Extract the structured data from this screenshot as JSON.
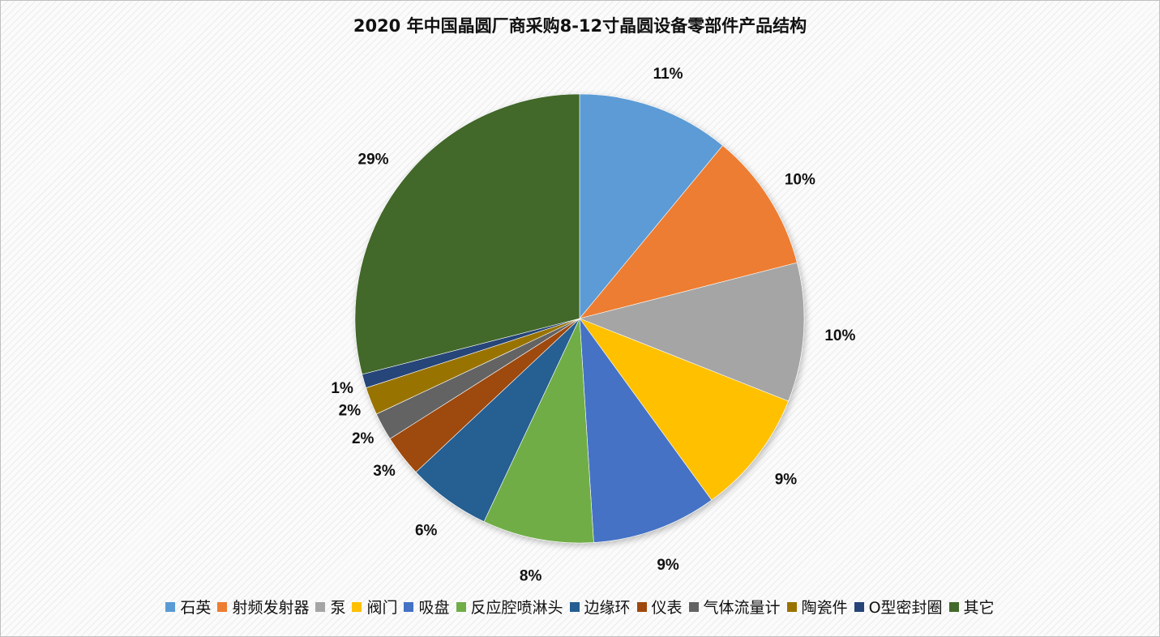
{
  "chart_data": {
    "type": "pie",
    "title": "2020 年中国晶圆厂商采购8-12寸晶圆设备零部件产品结构",
    "legend_position": "bottom",
    "slices": [
      {
        "name": "石英",
        "value": 11,
        "label": "11%",
        "color": "#5b9bd5"
      },
      {
        "name": "射频发射器",
        "value": 10,
        "label": "10%",
        "color": "#ed7d31"
      },
      {
        "name": "泵",
        "value": 10,
        "label": "10%",
        "color": "#a5a5a5"
      },
      {
        "name": "阀门",
        "value": 9,
        "label": "9%",
        "color": "#ffc000"
      },
      {
        "name": "吸盘",
        "value": 9,
        "label": "9%",
        "color": "#4472c4"
      },
      {
        "name": "反应腔喷淋头",
        "value": 8,
        "label": "8%",
        "color": "#70ad47"
      },
      {
        "name": "边缘环",
        "value": 6,
        "label": "6%",
        "color": "#255e91"
      },
      {
        "name": "仪表",
        "value": 3,
        "label": "3%",
        "color": "#9e480e"
      },
      {
        "name": "气体流量计",
        "value": 2,
        "label": "2%",
        "color": "#636363"
      },
      {
        "name": "陶瓷件",
        "value": 2,
        "label": "2%",
        "color": "#997300"
      },
      {
        "name": "O型密封圈",
        "value": 1,
        "label": "1%",
        "color": "#264478"
      },
      {
        "name": "其它",
        "value": 29,
        "label": "29%",
        "color": "#43682b"
      }
    ]
  }
}
